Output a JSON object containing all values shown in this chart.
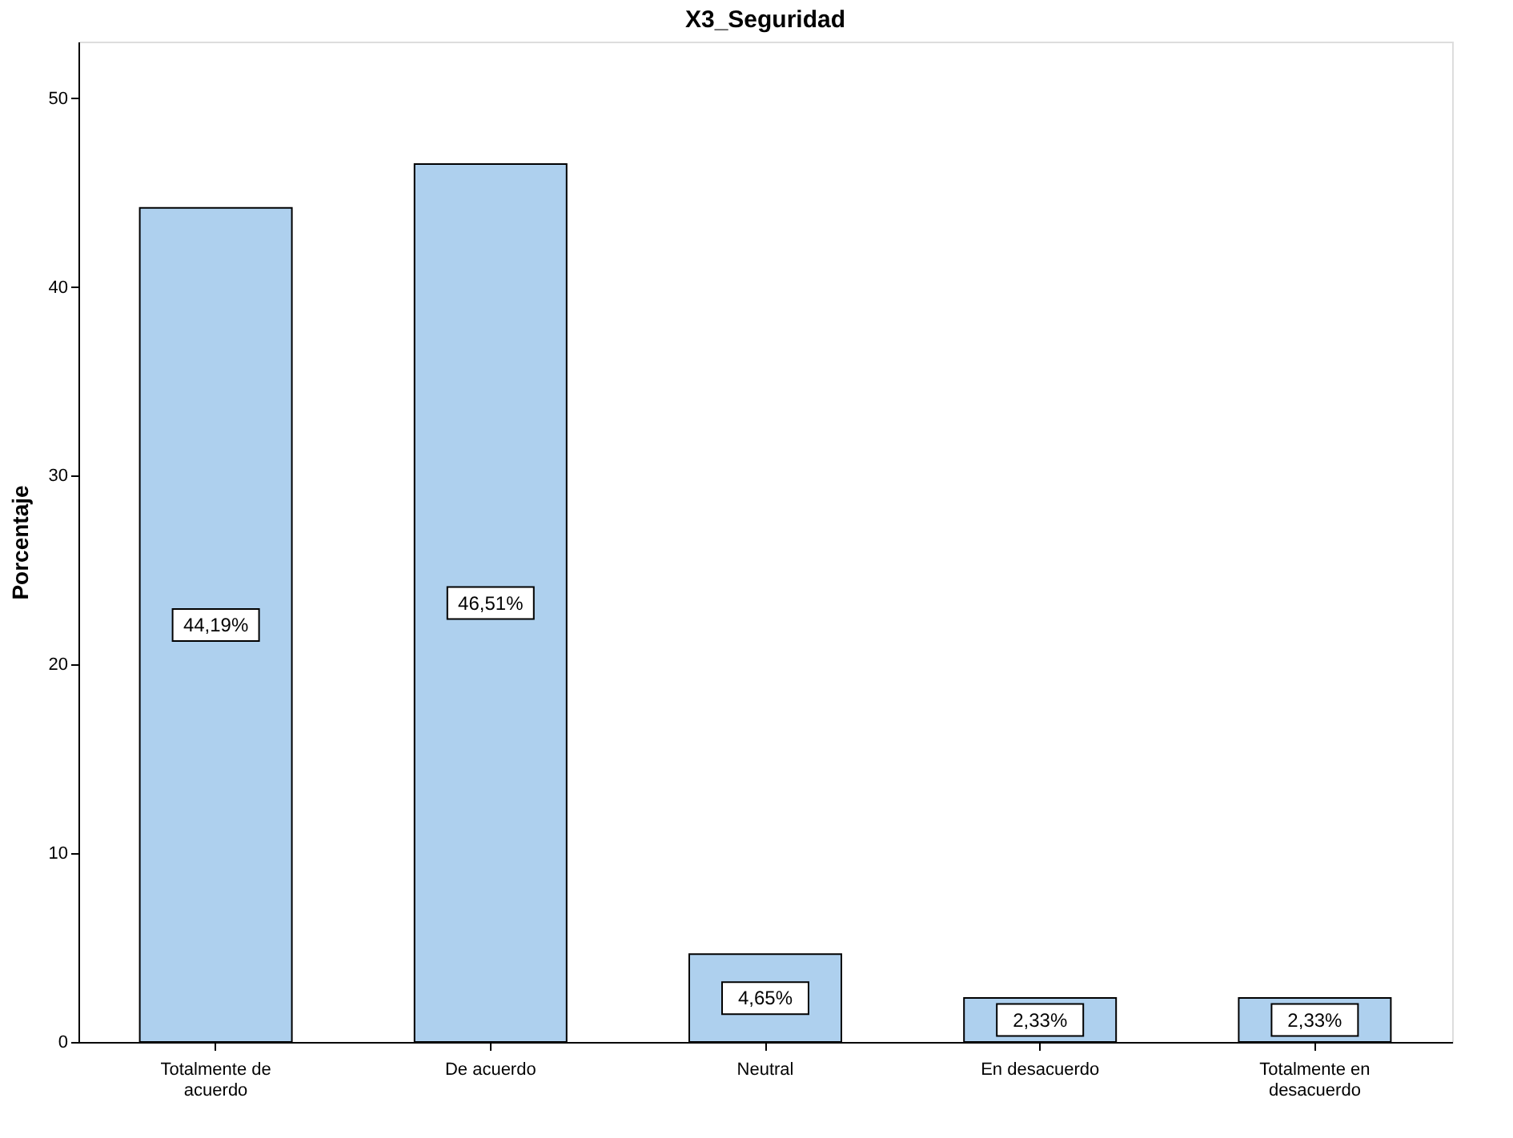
{
  "chart_data": {
    "type": "bar",
    "title": "X3_Seguridad",
    "ylabel": "Porcentaje",
    "categories": [
      "Totalmente de acuerdo",
      "De acuerdo",
      "Neutral",
      "En desacuerdo",
      "Totalmente en desacuerdo"
    ],
    "values": [
      44.19,
      46.51,
      4.65,
      2.33,
      2.33
    ],
    "value_labels": [
      "44,19%",
      "46,51%",
      "4,65%",
      "2,33%",
      "2,33%"
    ],
    "color": "#aed0ee",
    "ylim": [
      0,
      53
    ],
    "yticks": [
      0,
      10,
      20,
      30,
      40,
      50
    ],
    "grid": false
  }
}
